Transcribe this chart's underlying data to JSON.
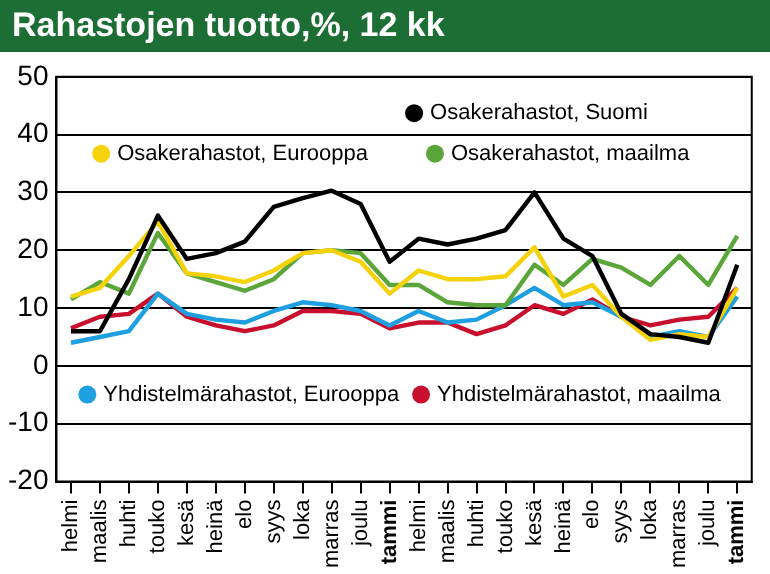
{
  "chart_data": {
    "type": "line",
    "title": "Rahastojen tuotto,%, 12 kk",
    "categories": [
      "helmi",
      "maalis",
      "huhti",
      "touko",
      "kesä",
      "heinä",
      "elo",
      "syys",
      "loka",
      "marras",
      "joulu",
      "tammi",
      "helmi",
      "maalis",
      "huhti",
      "touko",
      "kesä",
      "heinä",
      "elo",
      "syys",
      "loka",
      "marras",
      "joulu",
      "tammi"
    ],
    "series": [
      {
        "name": "Osakerahastot, Suomi",
        "color": "#000000",
        "values": [
          6,
          6,
          15,
          26,
          18.5,
          19.5,
          21.5,
          27.5,
          29,
          30.3,
          28,
          18,
          22,
          21,
          22,
          23.5,
          30,
          22,
          19,
          9,
          5.5,
          5,
          4,
          17.5
        ]
      },
      {
        "name": "Osakerahastot, Eurooppa",
        "color": "#f5d20a",
        "values": [
          12,
          13.5,
          19,
          25,
          16,
          15.5,
          14.5,
          16.5,
          19.5,
          20,
          18,
          12.5,
          16.5,
          15,
          15,
          15.5,
          20.5,
          12,
          14,
          8.5,
          4.5,
          5.5,
          5,
          13.5
        ]
      },
      {
        "name": "Osakerahastot, maailma",
        "color": "#5aa63a",
        "values": [
          11.5,
          14.5,
          12.5,
          23,
          16,
          14.5,
          13,
          15,
          19.5,
          20,
          19.5,
          14,
          14,
          11,
          10.5,
          10.5,
          17.5,
          14,
          18.5,
          17,
          14,
          19,
          14,
          22.5
        ]
      },
      {
        "name": "Yhdistelmärahastot, Eurooppa",
        "color": "#1ea0e0",
        "values": [
          4,
          5,
          6,
          12.5,
          9,
          8,
          7.5,
          9.5,
          11,
          10.5,
          9.5,
          7,
          9.5,
          7.5,
          8,
          10.5,
          13.5,
          10.5,
          11,
          8.5,
          5,
          6,
          5,
          12
        ]
      },
      {
        "name": "Yhdistelmärahastot, maailma",
        "color": "#c8102e",
        "values": [
          6.5,
          8.5,
          9,
          12.5,
          8.5,
          7,
          6,
          7,
          9.5,
          9.5,
          9,
          6.5,
          7.5,
          7.5,
          5.5,
          7,
          10.5,
          9,
          11.5,
          8.5,
          7,
          8,
          8.5,
          13.5
        ]
      }
    ],
    "ylim": [
      -20,
      50
    ],
    "yticks": [
      -20,
      -10,
      0,
      10,
      20,
      30,
      40,
      50
    ],
    "grid": "y",
    "legend": "top",
    "marker": "none",
    "line_style": "solid"
  }
}
